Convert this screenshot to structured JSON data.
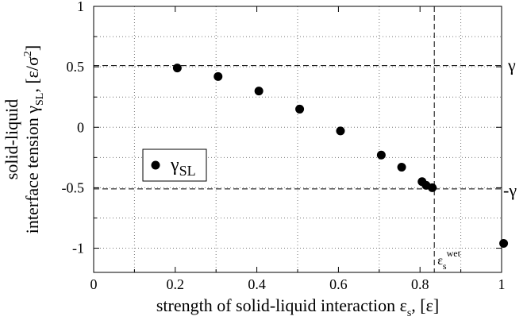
{
  "chart_data": {
    "type": "scatter",
    "xlim": [
      0,
      1
    ],
    "ylim": [
      -1.2,
      1
    ],
    "x_ticks": [
      "0",
      "0.2",
      "0.4",
      "0.6",
      "0.8",
      "1"
    ],
    "x_tick_values": [
      0,
      0.2,
      0.4,
      0.6,
      0.8,
      1
    ],
    "y_ticks": [
      "1",
      "0.5",
      "0",
      "-0.5",
      "-1"
    ],
    "y_tick_values": [
      1,
      0.5,
      0,
      -0.5,
      -1
    ],
    "grid": "dotted",
    "xlabel": {
      "main": "strength of solid-liquid interaction ε",
      "sub": "s",
      "tail": ", [ε]"
    },
    "ylabel": {
      "line1": "solid-liquid",
      "line2_main": "interface tension γ",
      "line2_sub": "SL",
      "line2_mid": ", [ε/σ",
      "line2_sup": "2",
      "line2_end": "]"
    },
    "series": [
      {
        "name_main": "γ",
        "name_sub": "SL",
        "color": "#000000",
        "points": [
          {
            "x": 0.205,
            "y": 0.49
          },
          {
            "x": 0.305,
            "y": 0.42
          },
          {
            "x": 0.405,
            "y": 0.3
          },
          {
            "x": 0.505,
            "y": 0.15
          },
          {
            "x": 0.605,
            "y": -0.03
          },
          {
            "x": 0.705,
            "y": -0.23
          },
          {
            "x": 0.755,
            "y": -0.33
          },
          {
            "x": 0.805,
            "y": -0.45
          },
          {
            "x": 0.815,
            "y": -0.48
          },
          {
            "x": 0.83,
            "y": -0.5
          },
          {
            "x": 1.005,
            "y": -0.96
          }
        ]
      }
    ],
    "reference_lines": [
      {
        "orientation": "horizontal",
        "value": 0.51,
        "label": "γ",
        "style": "dashed"
      },
      {
        "orientation": "horizontal",
        "value": -0.51,
        "label": "-γ",
        "style": "dashed"
      },
      {
        "orientation": "vertical",
        "value": 0.835,
        "label_main": "ε",
        "label_sub": "s",
        "label_sup": "wet",
        "style": "dashed"
      }
    ],
    "legend": {
      "placement": "left-middle"
    }
  }
}
